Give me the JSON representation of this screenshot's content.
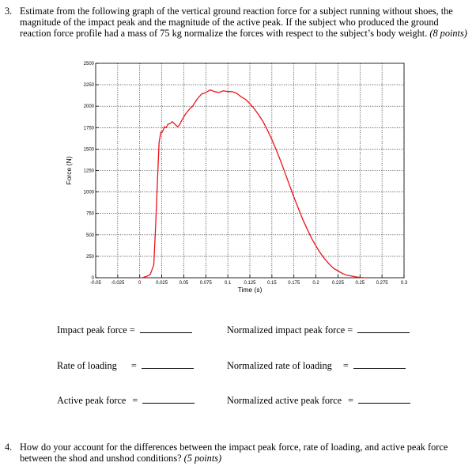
{
  "question3": {
    "number": "3.",
    "text": "Estimate from the following graph of the vertical ground reaction force for a subject running without shoes, the magnitude of the impact peak and the magnitude of the active peak. If the subject who produced the ground reaction force profile had a mass of 75 kg normalize the forces with respect to the subject’s body weight.",
    "points": "(8 points)"
  },
  "chart_data": {
    "type": "line",
    "xlabel": "Time (s)",
    "ylabel": "Force (N)",
    "xlim": [
      -0.05,
      0.3
    ],
    "ylim": [
      0,
      2500
    ],
    "x_ticks": [
      "-0.05",
      "-0.025",
      "0",
      "0.025",
      "0.05",
      "0.075",
      "0.1",
      "0.125",
      "0.15",
      "0.175",
      "0.2",
      "0.225",
      "0.25",
      "0.275",
      "0.3"
    ],
    "y_ticks": [
      "0",
      "250",
      "500",
      "750",
      "1000",
      "1250",
      "1500",
      "1750",
      "2000",
      "2250",
      "2500"
    ],
    "grid": true,
    "line_color": "#e8141c",
    "series": [
      {
        "x": [
          0.0,
          0.003,
          0.006,
          0.009,
          0.012,
          0.016,
          0.018,
          0.02,
          0.022,
          0.024,
          0.025,
          0.027,
          0.028,
          0.03,
          0.032,
          0.035,
          0.037,
          0.04,
          0.043,
          0.045,
          0.048,
          0.052,
          0.056,
          0.06,
          0.065,
          0.07,
          0.075,
          0.08,
          0.085,
          0.09,
          0.095,
          0.1,
          0.105,
          0.11,
          0.115,
          0.12,
          0.125,
          0.13,
          0.135,
          0.14,
          0.145,
          0.15,
          0.155,
          0.16,
          0.165,
          0.17,
          0.175,
          0.18,
          0.185,
          0.19,
          0.195,
          0.2,
          0.205,
          0.21,
          0.215,
          0.22,
          0.225,
          0.23,
          0.235,
          0.24,
          0.245,
          0.25,
          0.255,
          0.26
        ],
        "y": [
          0,
          0,
          10,
          20,
          40,
          150,
          600,
          1100,
          1580,
          1700,
          1690,
          1730,
          1760,
          1750,
          1790,
          1800,
          1820,
          1790,
          1760,
          1780,
          1840,
          1910,
          1960,
          2000,
          2080,
          2140,
          2160,
          2190,
          2170,
          2160,
          2180,
          2170,
          2170,
          2150,
          2110,
          2080,
          2030,
          1970,
          1900,
          1820,
          1720,
          1610,
          1490,
          1360,
          1220,
          1080,
          940,
          810,
          680,
          570,
          460,
          370,
          290,
          220,
          160,
          110,
          80,
          50,
          30,
          20,
          10,
          5,
          0,
          0
        ]
      }
    ]
  },
  "fields": {
    "impact_peak_label": "Impact peak force =",
    "normalized_impact_label": "Normalized impact peak force =",
    "rate_loading_label": "Rate of loading",
    "rate_loading_eq": "=",
    "normalized_rate_label": "Normalized rate of loading",
    "normalized_rate_eq": "=",
    "active_peak_label": "Active peak force",
    "active_peak_eq": "=",
    "normalized_active_label": "Normalized active peak force",
    "normalized_active_eq": "="
  },
  "question4": {
    "number": "4.",
    "text": "How do your account for the differences between the impact peak force, rate of loading, and active peak force between the shod and unshod conditions?",
    "points": "(5 points)"
  }
}
